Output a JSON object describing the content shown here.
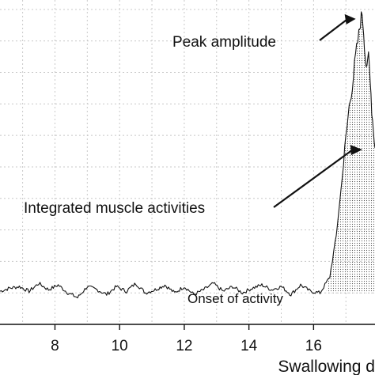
{
  "chart_data": {
    "type": "line",
    "xlabel": "Swallowing d",
    "ylabel": "",
    "xlim": [
      6.3,
      17.9
    ],
    "ylim": [
      0,
      10.3
    ],
    "x_ticks": [
      8,
      10,
      12,
      14,
      16
    ],
    "x_tick_labels": [
      "8",
      "10",
      "12",
      "14",
      "16"
    ],
    "grid": true,
    "series": [
      {
        "name": "",
        "x": [
          6.3,
          6.6,
          6.9,
          7.2,
          7.5,
          7.8,
          8.1,
          8.4,
          8.7,
          9.0,
          9.3,
          9.6,
          9.9,
          10.2,
          10.5,
          10.8,
          11.1,
          11.4,
          11.7,
          12.0,
          12.3,
          12.6,
          12.9,
          13.2,
          13.5,
          13.8,
          14.1,
          14.4,
          14.7,
          15.0,
          15.3,
          15.6,
          15.9,
          16.2,
          16.5,
          16.7,
          16.85,
          17.0,
          17.1,
          17.2,
          17.3,
          17.4,
          17.45,
          17.5,
          17.55,
          17.6,
          17.65,
          17.7,
          17.75,
          17.8,
          17.85,
          17.9
        ],
        "values": [
          1.05,
          1.15,
          1.2,
          1.05,
          1.3,
          1.1,
          1.25,
          1.0,
          0.85,
          1.2,
          1.1,
          0.95,
          1.2,
          1.05,
          1.3,
          1.0,
          1.1,
          1.25,
          1.0,
          1.2,
          0.95,
          1.1,
          1.3,
          1.05,
          1.2,
          1.0,
          1.15,
          1.25,
          1.1,
          1.2,
          0.95,
          1.25,
          1.05,
          1.0,
          1.5,
          2.8,
          4.3,
          5.9,
          6.9,
          7.6,
          8.5,
          9.2,
          9.6,
          9.9,
          9.3,
          8.5,
          8.0,
          8.6,
          7.9,
          6.8,
          6.2,
          5.6
        ]
      }
    ],
    "annotations": [
      {
        "text": "Peak amplitude",
        "target_x": 17.5,
        "target_y": 9.9
      },
      {
        "text": "Integrated muscle activities",
        "target_x": 17.8,
        "target_y": 5.6
      },
      {
        "text": "Onset of activity",
        "target_x": 16.4,
        "target_y": 1.0
      }
    ],
    "shaded_region": {
      "x_start": 16.4,
      "x_end": 17.9,
      "fill": "dotted"
    }
  }
}
